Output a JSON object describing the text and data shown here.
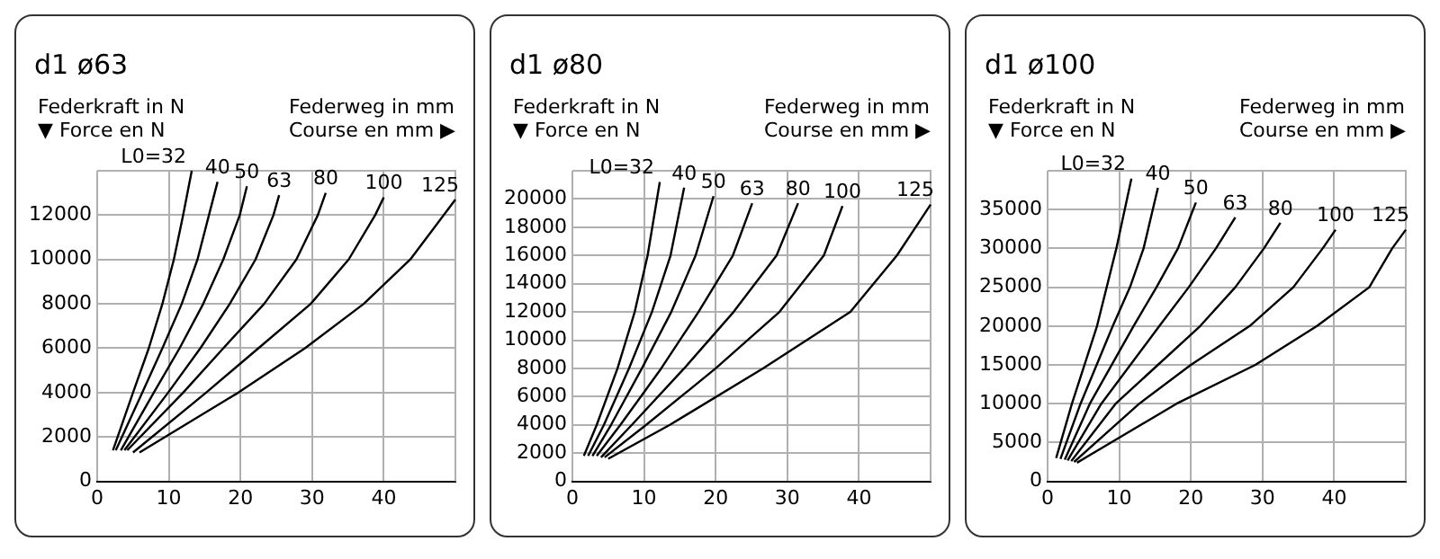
{
  "chart_data": [
    {
      "type": "line",
      "title": "d1 ø63",
      "ylabel": "Federkraft in N\n▼ Force en N",
      "xlabel": "Federweg in mm\nCourse en mm ▶",
      "xlim": [
        0,
        50
      ],
      "xticks": [
        0,
        10,
        20,
        30,
        40
      ],
      "ylim": [
        0,
        14000
      ],
      "yticks": [
        0,
        2000,
        4000,
        6000,
        8000,
        10000,
        12000
      ],
      "grid": true,
      "legend": false,
      "marker": "none",
      "line_style": "solid",
      "series": [
        {
          "name": "L0=32",
          "color": "#000000",
          "x": [
            2.2,
            5,
            7.2,
            9.1,
            10.7,
            12,
            13.2
          ],
          "values": [
            1400,
            4000,
            6000,
            8000,
            10000,
            12000,
            14000
          ]
        },
        {
          "name": "40",
          "color": "#000000",
          "x": [
            2.6,
            6.3,
            9.1,
            11.8,
            14,
            15.6,
            16.8
          ],
          "values": [
            1400,
            4000,
            6000,
            8000,
            10000,
            12000,
            13500
          ]
        },
        {
          "name": "50",
          "color": "#000000",
          "x": [
            3.3,
            7.9,
            11.5,
            14.8,
            17.6,
            19.9,
            20.9
          ],
          "values": [
            1400,
            4000,
            6000,
            8000,
            10000,
            12000,
            13300
          ]
        },
        {
          "name": "63",
          "color": "#000000",
          "x": [
            3.8,
            9.9,
            14.4,
            18.5,
            22.1,
            24.6,
            25.4
          ],
          "values": [
            1400,
            4000,
            6000,
            8000,
            10000,
            12000,
            12900
          ]
        },
        {
          "name": "80",
          "color": "#000000",
          "x": [
            4.2,
            12,
            17.6,
            23.3,
            27.8,
            30.8,
            31.9
          ],
          "values": [
            1400,
            4000,
            6000,
            8000,
            10000,
            12000,
            13000
          ]
        },
        {
          "name": "100",
          "color": "#000000",
          "x": [
            5,
            15.2,
            22.5,
            29.8,
            35.1,
            38.8,
            40
          ],
          "values": [
            1300,
            4000,
            6000,
            8000,
            10000,
            12000,
            12800
          ]
        },
        {
          "name": "125",
          "color": "#000000",
          "x": [
            5.9,
            19.7,
            29,
            37.2,
            43.7,
            50
          ],
          "values": [
            1300,
            4000,
            6000,
            8000,
            10000,
            12700
          ]
        }
      ]
    },
    {
      "type": "line",
      "title": "d1 ø80",
      "ylabel": "Federkraft in N\n▼ Force en N",
      "xlabel": "Federweg in mm\nCourse en mm ▶",
      "xlim": [
        0,
        50
      ],
      "xticks": [
        0,
        10,
        20,
        30,
        40
      ],
      "ylim": [
        0,
        22000
      ],
      "yticks": [
        0,
        2000,
        4000,
        6000,
        8000,
        10000,
        12000,
        14000,
        16000,
        18000,
        20000
      ],
      "grid": true,
      "legend": false,
      "marker": "none",
      "line_style": "solid",
      "series": [
        {
          "name": "L0=32",
          "color": "#000000",
          "x": [
            1.6,
            3.4,
            6.3,
            8.7,
            10.5,
            12.2
          ],
          "values": [
            1800,
            4000,
            8000,
            12000,
            16000,
            21200
          ]
        },
        {
          "name": "40",
          "color": "#000000",
          "x": [
            2.2,
            4.4,
            7.9,
            11.1,
            13.7,
            15.6
          ],
          "values": [
            1800,
            4000,
            8000,
            12000,
            16000,
            20800
          ]
        },
        {
          "name": "50",
          "color": "#000000",
          "x": [
            2.8,
            5.4,
            9.7,
            13.8,
            17.2,
            19.7
          ],
          "values": [
            1800,
            4000,
            8000,
            12000,
            16000,
            20200
          ]
        },
        {
          "name": "63",
          "color": "#000000",
          "x": [
            3.4,
            6.7,
            12.4,
            17.6,
            22.4,
            25.1
          ],
          "values": [
            1800,
            4000,
            8000,
            12000,
            16000,
            19700
          ]
        },
        {
          "name": "80",
          "color": "#000000",
          "x": [
            4,
            8.3,
            15.6,
            22.5,
            28.5,
            31.5
          ],
          "values": [
            1700,
            4000,
            8000,
            12000,
            16000,
            19700
          ]
        },
        {
          "name": "100",
          "color": "#000000",
          "x": [
            4.5,
            10.3,
            20,
            28.9,
            35.1,
            37.7
          ],
          "values": [
            1700,
            4000,
            8000,
            12000,
            16000,
            19500
          ]
        },
        {
          "name": "125",
          "color": "#000000",
          "x": [
            5,
            13.6,
            26.6,
            38.8,
            45.3,
            50
          ],
          "values": [
            1600,
            4000,
            8000,
            12000,
            16000,
            19600
          ]
        }
      ]
    },
    {
      "type": "line",
      "title": "d1 ø100",
      "ylabel": "Federkraft in N\n▼ Force en N",
      "xlabel": "Federweg in mm\nCourse en mm ▶",
      "xlim": [
        0,
        50
      ],
      "xticks": [
        0,
        10,
        20,
        30,
        40
      ],
      "ylim": [
        0,
        40000
      ],
      "yticks": [
        0,
        5000,
        10000,
        15000,
        20000,
        25000,
        30000,
        35000
      ],
      "grid": true,
      "legend": false,
      "marker": "none",
      "line_style": "solid",
      "series": [
        {
          "name": "L0=32",
          "color": "#000000",
          "x": [
            1.2,
            3.4,
            6.9,
            9.6,
            11.7
          ],
          "values": [
            3000,
            10000,
            20000,
            30000,
            39000
          ]
        },
        {
          "name": "40",
          "color": "#000000",
          "x": [
            1.8,
            4.6,
            9.1,
            11.5,
            13.4,
            15.4
          ],
          "values": [
            2900,
            10000,
            20000,
            25000,
            30000,
            37800
          ]
        },
        {
          "name": "50",
          "color": "#000000",
          "x": [
            2.4,
            5.9,
            12,
            15.2,
            18.2,
            20.7
          ],
          "values": [
            2800,
            10000,
            20000,
            25000,
            30000,
            35900
          ]
        },
        {
          "name": "63",
          "color": "#000000",
          "x": [
            2.8,
            7.5,
            15.6,
            19.7,
            23.5,
            26.2
          ],
          "values": [
            2700,
            10000,
            20000,
            25000,
            30000,
            34000
          ]
        },
        {
          "name": "80",
          "color": "#000000",
          "x": [
            3.3,
            9.5,
            21.3,
            26.2,
            30.2,
            32.5
          ],
          "values": [
            2600,
            10000,
            20000,
            25000,
            30000,
            33300
          ]
        },
        {
          "name": "100",
          "color": "#000000",
          "x": [
            3.7,
            12.8,
            20,
            28.2,
            34.3,
            38.4,
            40.2
          ],
          "values": [
            2500,
            10000,
            15000,
            20000,
            25000,
            30000,
            32400
          ]
        },
        {
          "name": "125",
          "color": "#000000",
          "x": [
            4.1,
            18,
            29,
            37.6,
            44.9,
            48.1,
            50
          ],
          "values": [
            2400,
            10000,
            15000,
            20000,
            25000,
            30000,
            32400
          ]
        }
      ]
    }
  ]
}
